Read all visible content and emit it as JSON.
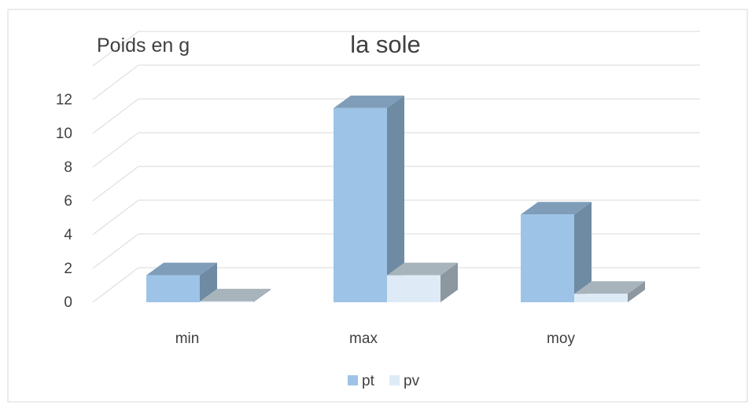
{
  "chart_data": {
    "type": "bar",
    "title": "la sole",
    "ylabel": "Poids en g",
    "xlabel": "",
    "categories": [
      "min",
      "max",
      "moy"
    ],
    "series": [
      {
        "name": "pt",
        "values": [
          1.6,
          11.5,
          5.2
        ],
        "color": "#9DC3E6",
        "side_color": "#6E8BA3",
        "top_color": "#7F9DB9"
      },
      {
        "name": "pv",
        "values": [
          0.05,
          1.6,
          0.5
        ],
        "color": "#DEEBF7",
        "side_color": "#8C979F",
        "top_color": "#A8B4BC"
      }
    ],
    "ylim": [
      0,
      12
    ],
    "yticks": [
      0,
      2,
      4,
      6,
      8,
      10,
      12
    ],
    "grid": true,
    "legend": "bottom",
    "style": "3d-clustered-column"
  }
}
